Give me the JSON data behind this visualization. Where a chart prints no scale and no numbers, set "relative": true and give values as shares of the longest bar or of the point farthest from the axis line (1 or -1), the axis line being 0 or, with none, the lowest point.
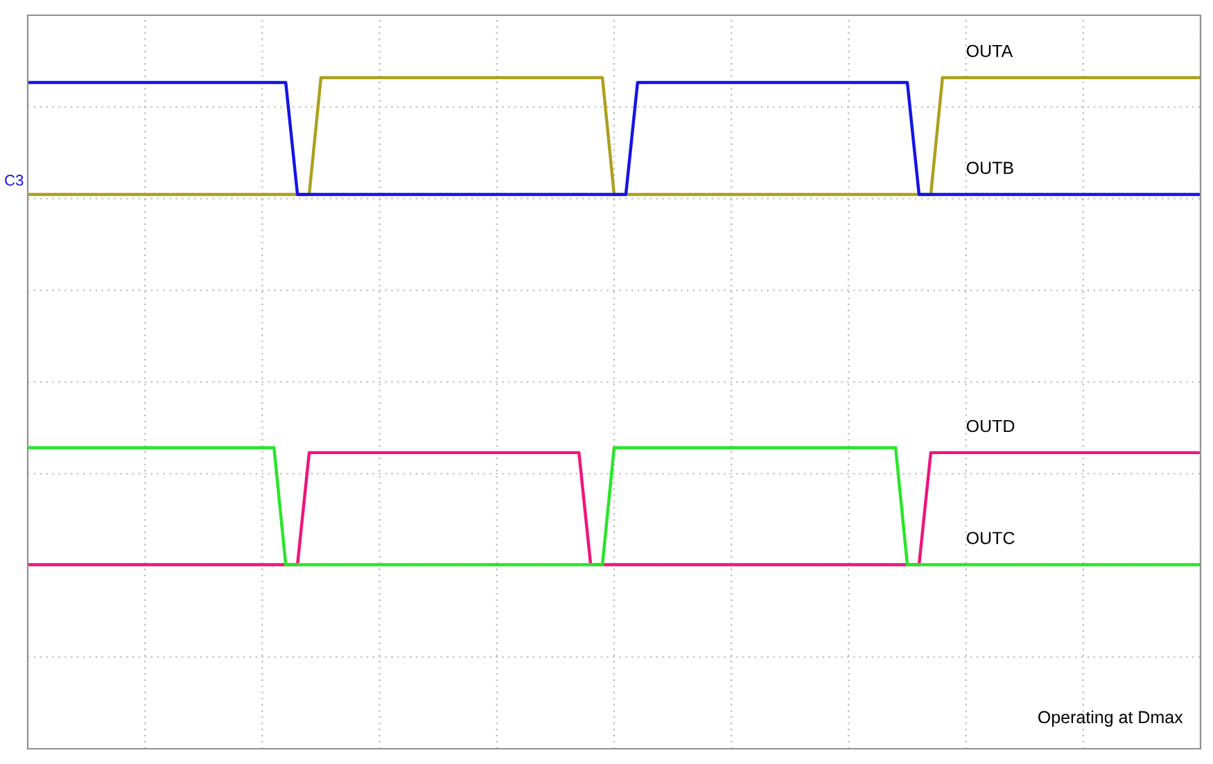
{
  "chart_data": {
    "type": "line",
    "relative": true,
    "grid": true,
    "categories": [
      null,
      null,
      null,
      null,
      null,
      null,
      null,
      null,
      null,
      null,
      null,
      null,
      null,
      null,
      null,
      null,
      null,
      null,
      null,
      null,
      null,
      null,
      null,
      null,
      null,
      null,
      null,
      null,
      null,
      null,
      null,
      null,
      null,
      null,
      null,
      null,
      null,
      null,
      null,
      null,
      null,
      null,
      null,
      null,
      null,
      null,
      null,
      null,
      null,
      null,
      null,
      null,
      null,
      null,
      null,
      null,
      null,
      null,
      null,
      null,
      null,
      null,
      null,
      null,
      null,
      null,
      null,
      null,
      null,
      null,
      null,
      null,
      null,
      null,
      null,
      null,
      null,
      null,
      null,
      null,
      null,
      null,
      null,
      null,
      null,
      null,
      null,
      null,
      null,
      null,
      null,
      null,
      null,
      null,
      null,
      null,
      null,
      null,
      null,
      null,
      null
    ],
    "series": [
      {
        "name": "OUTA",
        "color": "#aca01e",
        "values": [
          0.76,
          0.76,
          0.76,
          0.76,
          0.76,
          0.76,
          0.76,
          0.76,
          0.76,
          0.76,
          0.76,
          0.76,
          0.76,
          0.76,
          0.76,
          0.76,
          0.76,
          0.76,
          0.76,
          0.76,
          0.76,
          0.76,
          0.76,
          0.76,
          0.76,
          1.0,
          1.0,
          1.0,
          1.0,
          1.0,
          1.0,
          1.0,
          1.0,
          1.0,
          1.0,
          1.0,
          1.0,
          1.0,
          1.0,
          1.0,
          1.0,
          1.0,
          1.0,
          1.0,
          1.0,
          1.0,
          1.0,
          1.0,
          1.0,
          1.0,
          0.76,
          0.76,
          0.76,
          0.76,
          0.76,
          0.76,
          0.76,
          0.76,
          0.76,
          0.76,
          0.76,
          0.76,
          0.76,
          0.76,
          0.76,
          0.76,
          0.76,
          0.76,
          0.76,
          0.76,
          0.76,
          0.76,
          0.76,
          0.76,
          0.76,
          0.76,
          0.76,
          0.76,
          1.0,
          1.0,
          1.0,
          1.0,
          1.0,
          1.0,
          1.0,
          1.0,
          1.0,
          1.0,
          1.0,
          1.0,
          1.0,
          1.0,
          1.0,
          1.0,
          1.0,
          1.0,
          1.0,
          1.0,
          1.0,
          1.0,
          1.0
        ]
      },
      {
        "name": "OUTB",
        "color": "#1414e6",
        "values": [
          0.99,
          0.99,
          0.99,
          0.99,
          0.99,
          0.99,
          0.99,
          0.99,
          0.99,
          0.99,
          0.99,
          0.99,
          0.99,
          0.99,
          0.99,
          0.99,
          0.99,
          0.99,
          0.99,
          0.99,
          0.99,
          0.99,
          0.99,
          0.76,
          0.76,
          0.76,
          0.76,
          0.76,
          0.76,
          0.76,
          0.76,
          0.76,
          0.76,
          0.76,
          0.76,
          0.76,
          0.76,
          0.76,
          0.76,
          0.76,
          0.76,
          0.76,
          0.76,
          0.76,
          0.76,
          0.76,
          0.76,
          0.76,
          0.76,
          0.76,
          0.76,
          0.76,
          0.99,
          0.99,
          0.99,
          0.99,
          0.99,
          0.99,
          0.99,
          0.99,
          0.99,
          0.99,
          0.99,
          0.99,
          0.99,
          0.99,
          0.99,
          0.99,
          0.99,
          0.99,
          0.99,
          0.99,
          0.99,
          0.99,
          0.99,
          0.99,
          0.76,
          0.76,
          0.76,
          0.76,
          0.76,
          0.76,
          0.76,
          0.76,
          0.76,
          0.76,
          0.76,
          0.76,
          0.76,
          0.76,
          0.76,
          0.76,
          0.76,
          0.76,
          0.76,
          0.76,
          0.76,
          0.76,
          0.76,
          0.76,
          0.76
        ]
      },
      {
        "name": "OUTD",
        "color": "#f0147c",
        "values": [
          0,
          0,
          0,
          0,
          0,
          0,
          0,
          0,
          0,
          0,
          0,
          0,
          0,
          0,
          0,
          0,
          0,
          0,
          0,
          0,
          0,
          0,
          0,
          0,
          0.23,
          0.23,
          0.23,
          0.23,
          0.23,
          0.23,
          0.23,
          0.23,
          0.23,
          0.23,
          0.23,
          0.23,
          0.23,
          0.23,
          0.23,
          0.23,
          0.23,
          0.23,
          0.23,
          0.23,
          0.23,
          0.23,
          0.23,
          0.23,
          0,
          0,
          0,
          0,
          0,
          0,
          0,
          0,
          0,
          0,
          0,
          0,
          0,
          0,
          0,
          0,
          0,
          0,
          0,
          0,
          0,
          0,
          0,
          0,
          0,
          0,
          0,
          0,
          0,
          0.23,
          0.23,
          0.23,
          0.23,
          0.23,
          0.23,
          0.23,
          0.23,
          0.23,
          0.23,
          0.23,
          0.23,
          0.23,
          0.23,
          0.23,
          0.23,
          0.23,
          0.23,
          0.23,
          0.23,
          0.23,
          0.23,
          0.23,
          0.23
        ]
      },
      {
        "name": "OUTC",
        "color": "#28e628",
        "values": [
          0.24,
          0.24,
          0.24,
          0.24,
          0.24,
          0.24,
          0.24,
          0.24,
          0.24,
          0.24,
          0.24,
          0.24,
          0.24,
          0.24,
          0.24,
          0.24,
          0.24,
          0.24,
          0.24,
          0.24,
          0.24,
          0.24,
          0,
          0,
          0,
          0,
          0,
          0,
          0,
          0,
          0,
          0,
          0,
          0,
          0,
          0,
          0,
          0,
          0,
          0,
          0,
          0,
          0,
          0,
          0,
          0,
          0,
          0,
          0,
          0,
          0.24,
          0.24,
          0.24,
          0.24,
          0.24,
          0.24,
          0.24,
          0.24,
          0.24,
          0.24,
          0.24,
          0.24,
          0.24,
          0.24,
          0.24,
          0.24,
          0.24,
          0.24,
          0.24,
          0.24,
          0.24,
          0.24,
          0.24,
          0.24,
          0.24,
          0,
          0,
          0,
          0,
          0,
          0,
          0,
          0,
          0,
          0,
          0,
          0,
          0,
          0,
          0,
          0,
          0,
          0,
          0,
          0,
          0,
          0,
          0,
          0,
          0,
          0
        ]
      }
    ],
    "annotations": [
      "Operating at Dmax",
      "C3"
    ]
  }
}
